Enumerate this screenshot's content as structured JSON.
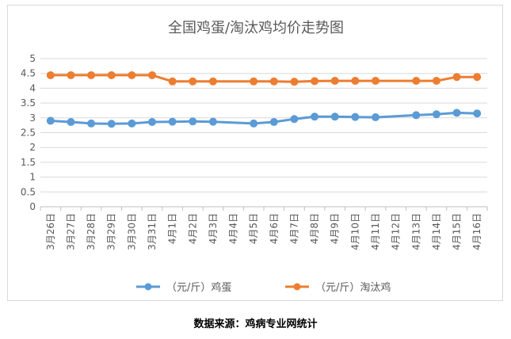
{
  "chart_data": {
    "type": "line",
    "title": "全国鸡蛋/淘汰鸡均价走势图",
    "xlabel": "",
    "ylabel": "",
    "ylim": [
      0,
      5
    ],
    "yticks": [
      "0",
      "0.5",
      "1",
      "1.5",
      "2",
      "2.5",
      "3",
      "3.5",
      "4",
      "4.5",
      "5"
    ],
    "grid": true,
    "legend_position": "bottom",
    "categories": [
      "3月26日",
      "3月27日",
      "3月28日",
      "3月29日",
      "3月30日",
      "3月31日",
      "4月1日",
      "4月2日",
      "4月3日",
      "4月4日",
      "4月5日",
      "4月6日",
      "4月7日",
      "4月8日",
      "4月9日",
      "4月10日",
      "4月11日",
      "4月12日",
      "4月13日",
      "4月14日",
      "4月15日",
      "4月16日"
    ],
    "series": [
      {
        "name": "（元/斤）鸡蛋",
        "color": "#5b9bd5",
        "values": [
          2.9,
          2.86,
          2.81,
          2.8,
          2.81,
          2.86,
          2.87,
          2.88,
          2.87,
          null,
          2.81,
          2.86,
          2.96,
          3.04,
          3.04,
          3.03,
          3.02,
          null,
          3.09,
          3.12,
          3.17,
          3.15
        ]
      },
      {
        "name": "（元/斤）淘汰鸡",
        "color": "#ed7d31",
        "values": [
          4.44,
          4.44,
          4.44,
          4.44,
          4.44,
          4.44,
          4.23,
          4.23,
          4.23,
          null,
          4.23,
          4.23,
          4.22,
          4.24,
          4.25,
          4.25,
          4.25,
          null,
          4.25,
          4.25,
          4.38,
          4.38
        ]
      }
    ]
  },
  "footer": {
    "source": "数据来源：鸡病专业网统计"
  }
}
